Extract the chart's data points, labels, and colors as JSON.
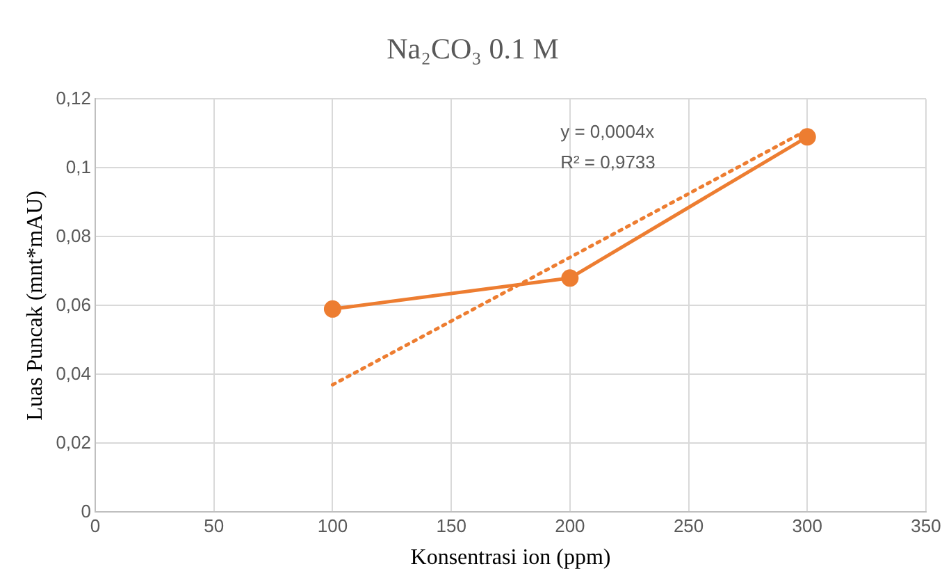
{
  "chart_data": {
    "type": "line",
    "title": "Na₂CO₃ 0.1 M",
    "xlabel": "Konsentrasi ion (ppm)",
    "ylabel": "Luas Puncak (mnt*mAU)",
    "x": [
      100,
      200,
      300
    ],
    "series": [
      {
        "color": "#ed7d31",
        "values": [
          0.059,
          0.068,
          0.109
        ]
      },
      {
        "type": "line",
        "color": "#ed7d31",
        "x": [
          100,
          300
        ],
        "values": [
          0.037,
          0.111
        ],
        "line_style": "dotted",
        "marker": "none"
      }
    ],
    "xlim": [
      0,
      350
    ],
    "xticks": [
      0,
      50,
      100,
      150,
      200,
      250,
      300,
      350
    ],
    "ylim": [
      0,
      0.12
    ],
    "yticks": [
      0,
      {
        "value": 0.02,
        "label": "0,02"
      },
      {
        "value": 0.04,
        "label": "0,04"
      },
      {
        "value": 0.06,
        "label": "0,06"
      },
      {
        "value": 0.08,
        "label": "0,08"
      },
      {
        "value": 0.1,
        "label": "0,1"
      },
      {
        "value": 0.12,
        "label": "0,12"
      }
    ],
    "annotations": [
      "y = 0,0004x",
      "R² = 0,9733"
    ],
    "grid": true,
    "legend": false,
    "marker": "circle",
    "line_style": "solid"
  }
}
